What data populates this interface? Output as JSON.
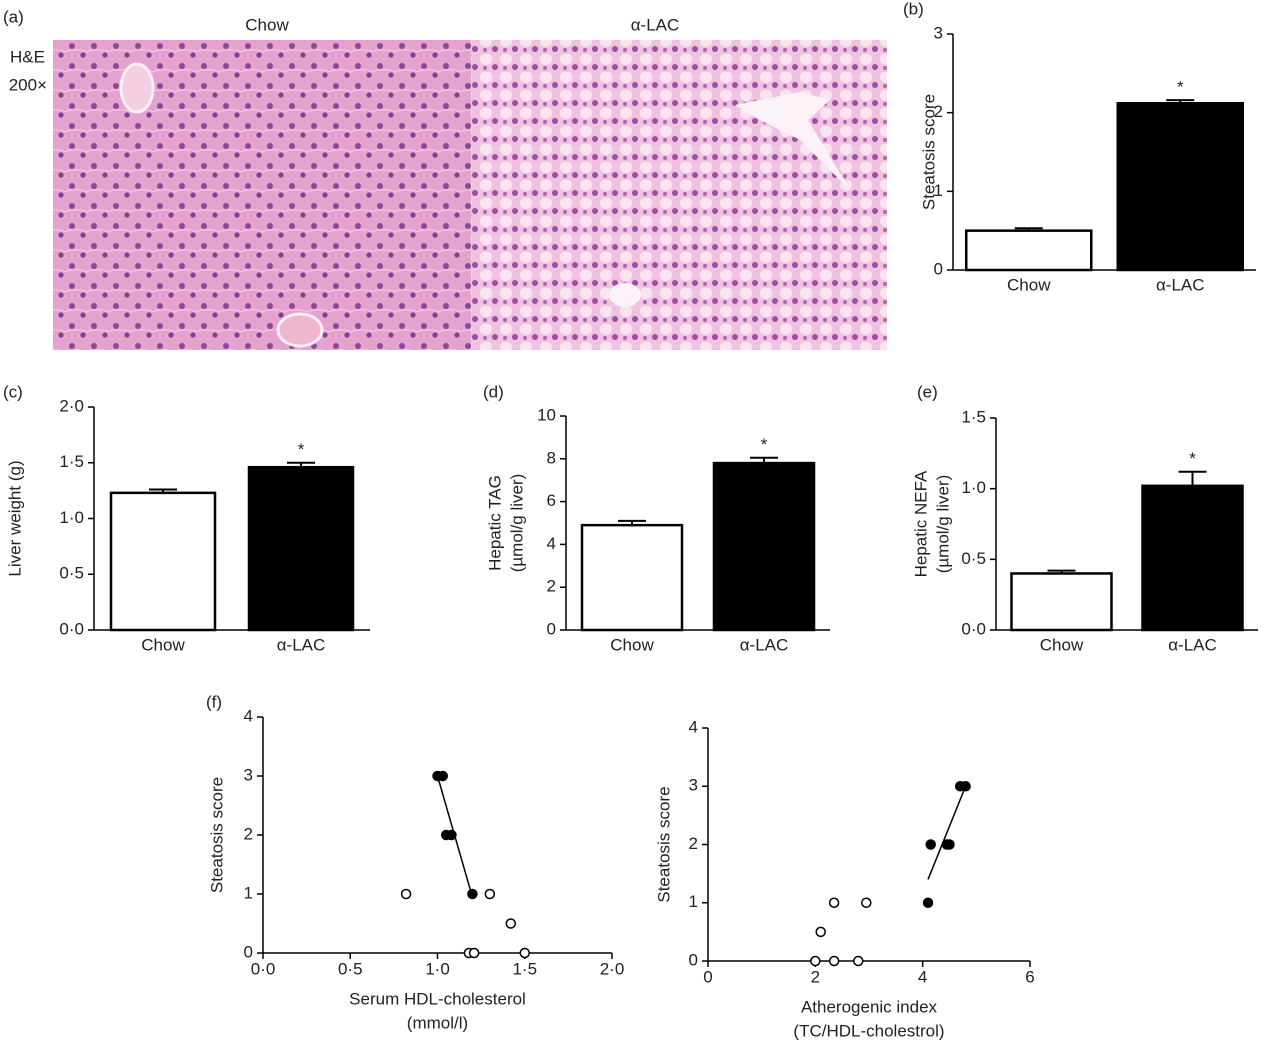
{
  "chart_data": [
    {
      "type": "image",
      "panel_label": "(a)",
      "categories": [
        "Chow",
        "α-LAC"
      ],
      "stain": "H&E",
      "magnification": "200×"
    },
    {
      "type": "bar",
      "panel_label": "(b)",
      "ylabel": [
        "Steatosis score"
      ],
      "categories": [
        "Chow",
        "α-LAC"
      ],
      "values": [
        0.5,
        2.12
      ],
      "errors": [
        0.03,
        0.04
      ],
      "significance_labels": [
        null,
        "*"
      ],
      "colors": [
        "#ffffff",
        "#000000"
      ],
      "ylim": [
        0,
        3
      ],
      "yticks": [
        0,
        1,
        2,
        3
      ]
    },
    {
      "type": "bar",
      "panel_label": "(c)",
      "ylabel": [
        "Liver weight (g)"
      ],
      "categories": [
        "Chow",
        "α-LAC"
      ],
      "values": [
        1.23,
        1.46
      ],
      "errors": [
        0.03,
        0.04
      ],
      "significance_labels": [
        null,
        "*"
      ],
      "colors": [
        "#ffffff",
        "#000000"
      ],
      "ylim": [
        0,
        2
      ],
      "yticks": [
        {
          "value": 0,
          "label": "0·0"
        },
        {
          "value": 0.5,
          "label": "0·5"
        },
        {
          "value": 1,
          "label": "1·0"
        },
        {
          "value": 1.5,
          "label": "1·5"
        },
        {
          "value": 2,
          "label": "2·0"
        }
      ]
    },
    {
      "type": "bar",
      "panel_label": "(d)",
      "ylabel": [
        "Hepatic TAG",
        "(µmol/g liver)"
      ],
      "categories": [
        "Chow",
        "α-LAC"
      ],
      "values": [
        4.9,
        7.8
      ],
      "errors": [
        0.2,
        0.25
      ],
      "significance_labels": [
        null,
        "*"
      ],
      "colors": [
        "#ffffff",
        "#000000"
      ],
      "ylim": [
        0,
        10
      ],
      "yticks": [
        0,
        2,
        4,
        6,
        8,
        10
      ]
    },
    {
      "type": "bar",
      "panel_label": "(e)",
      "ylabel": [
        "Hepatic NEFA",
        "(µmol/g liver)"
      ],
      "categories": [
        "Chow",
        "α-LAC"
      ],
      "values": [
        0.4,
        1.02
      ],
      "errors": [
        0.02,
        0.1
      ],
      "significance_labels": [
        null,
        "*"
      ],
      "colors": [
        "#ffffff",
        "#000000"
      ],
      "ylim": [
        0,
        1.5
      ],
      "yticks": [
        {
          "value": 0,
          "label": "0·0"
        },
        {
          "value": 0.5,
          "label": "0·5"
        },
        {
          "value": 1,
          "label": "1·0"
        },
        {
          "value": 1.5,
          "label": "1·5"
        }
      ]
    },
    {
      "type": "scatter",
      "panel_label": "(f)",
      "ylabel": [
        "Steatosis score"
      ],
      "xlabel": [
        "Serum HDL-cholesterol",
        "(mmol/l)"
      ],
      "series": [
        {
          "color": "#000000",
          "fill": "#000000",
          "x": [
            1.0,
            1.03,
            1.05,
            1.08,
            1.2
          ],
          "values": [
            3,
            3,
            2,
            2,
            1
          ]
        },
        {
          "color": "#000000",
          "fill": "#ffffff",
          "x": [
            0.82,
            1.3,
            1.42,
            1.18,
            1.21,
            1.5
          ],
          "values": [
            1,
            1,
            0.5,
            0,
            0,
            0
          ]
        }
      ],
      "trendline": {
        "x": [
          1.0,
          1.2
        ],
        "y": [
          3.0,
          0.95
        ]
      },
      "xlim": [
        0,
        2
      ],
      "xticks": [
        {
          "value": 0,
          "label": "0·0"
        },
        {
          "value": 0.5,
          "label": "0·5"
        },
        {
          "value": 1,
          "label": "1·0"
        },
        {
          "value": 1.5,
          "label": "1·5"
        },
        {
          "value": 2,
          "label": "2·0"
        }
      ],
      "ylim": [
        0,
        4
      ],
      "yticks": [
        0,
        1,
        2,
        3,
        4
      ]
    },
    {
      "type": "scatter",
      "ylabel": [
        "Steatosis score"
      ],
      "xlabel": [
        "Atherogenic index",
        "(TC/HDL-cholestrol)"
      ],
      "series": [
        {
          "color": "#000000",
          "fill": "#000000",
          "x": [
            4.1,
            4.15,
            4.45,
            4.5,
            4.7,
            4.8
          ],
          "values": [
            1,
            2,
            2,
            2,
            3,
            3
          ]
        },
        {
          "color": "#000000",
          "fill": "#ffffff",
          "x": [
            2.0,
            2.1,
            2.35,
            2.35,
            2.8,
            2.95
          ],
          "values": [
            0,
            0.5,
            1,
            0,
            0,
            1
          ]
        }
      ],
      "trendline": {
        "x": [
          4.1,
          4.8
        ],
        "y": [
          1.4,
          3.0
        ]
      },
      "xlim": [
        0,
        6
      ],
      "xticks": [
        0,
        2,
        4,
        6
      ],
      "ylim": [
        0,
        4
      ],
      "yticks": [
        0,
        1,
        2,
        3,
        4
      ]
    }
  ]
}
